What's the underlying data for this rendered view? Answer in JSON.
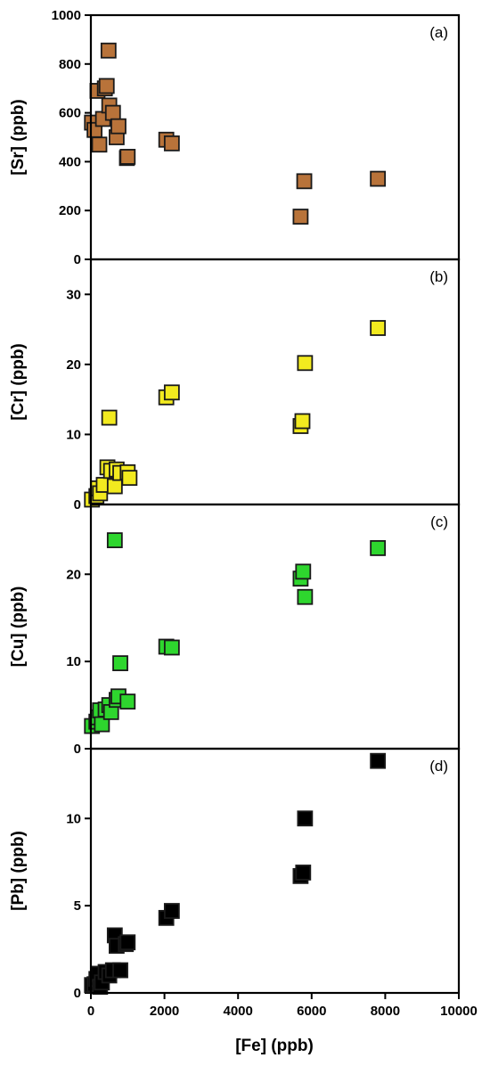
{
  "chart_data": [
    {
      "type": "scatter",
      "panel_label": "(a)",
      "ylabel": "[Sr] (ppb)",
      "ylim": [
        0,
        1000
      ],
      "yticks": [
        0,
        200,
        400,
        600,
        800,
        1000
      ],
      "ytick_labels": [
        "0",
        "200",
        "400",
        "600",
        "800",
        "1000"
      ],
      "marker_color": "#b8733a",
      "points": [
        {
          "x": 30,
          "y": 560
        },
        {
          "x": 100,
          "y": 530
        },
        {
          "x": 180,
          "y": 690
        },
        {
          "x": 230,
          "y": 470
        },
        {
          "x": 330,
          "y": 575
        },
        {
          "x": 380,
          "y": 700
        },
        {
          "x": 430,
          "y": 710
        },
        {
          "x": 480,
          "y": 855
        },
        {
          "x": 500,
          "y": 630
        },
        {
          "x": 600,
          "y": 600
        },
        {
          "x": 700,
          "y": 500
        },
        {
          "x": 750,
          "y": 545
        },
        {
          "x": 980,
          "y": 415
        },
        {
          "x": 1000,
          "y": 420
        },
        {
          "x": 2050,
          "y": 490
        },
        {
          "x": 2200,
          "y": 475
        },
        {
          "x": 5700,
          "y": 175
        },
        {
          "x": 5800,
          "y": 320
        },
        {
          "x": 7800,
          "y": 330
        }
      ]
    },
    {
      "type": "scatter",
      "panel_label": "(b)",
      "ylabel": "[Cr] (ppb)",
      "ylim": [
        0,
        35
      ],
      "yticks": [
        0,
        10,
        20,
        30
      ],
      "ytick_labels": [
        "0",
        "10",
        "20",
        "30"
      ],
      "marker_color": "#f2ea1f",
      "points": [
        {
          "x": 30,
          "y": 0.7
        },
        {
          "x": 150,
          "y": 1.2
        },
        {
          "x": 200,
          "y": 2.3
        },
        {
          "x": 250,
          "y": 1.6
        },
        {
          "x": 350,
          "y": 2.8
        },
        {
          "x": 450,
          "y": 5.3
        },
        {
          "x": 500,
          "y": 12.4
        },
        {
          "x": 550,
          "y": 4.8
        },
        {
          "x": 650,
          "y": 2.6
        },
        {
          "x": 700,
          "y": 5.0
        },
        {
          "x": 800,
          "y": 4.5
        },
        {
          "x": 1000,
          "y": 4.6
        },
        {
          "x": 1050,
          "y": 3.8
        },
        {
          "x": 2050,
          "y": 15.3
        },
        {
          "x": 2200,
          "y": 16.0
        },
        {
          "x": 5700,
          "y": 11.2
        },
        {
          "x": 5750,
          "y": 11.9
        },
        {
          "x": 5820,
          "y": 20.2
        },
        {
          "x": 7800,
          "y": 25.2
        }
      ]
    },
    {
      "type": "scatter",
      "panel_label": "(c)",
      "ylabel": "[Cu] (ppb)",
      "ylim": [
        0,
        28
      ],
      "yticks": [
        0,
        10,
        20
      ],
      "ytick_labels": [
        "0",
        "10",
        "20"
      ],
      "marker_color": "#2ed62e",
      "points": [
        {
          "x": 30,
          "y": 2.6
        },
        {
          "x": 150,
          "y": 3.1
        },
        {
          "x": 200,
          "y": 3.6
        },
        {
          "x": 250,
          "y": 4.4
        },
        {
          "x": 300,
          "y": 2.8
        },
        {
          "x": 400,
          "y": 4.5
        },
        {
          "x": 500,
          "y": 5.0
        },
        {
          "x": 550,
          "y": 4.2
        },
        {
          "x": 650,
          "y": 23.9
        },
        {
          "x": 700,
          "y": 5.6
        },
        {
          "x": 750,
          "y": 6.0
        },
        {
          "x": 800,
          "y": 9.8
        },
        {
          "x": 1000,
          "y": 5.4
        },
        {
          "x": 2050,
          "y": 11.7
        },
        {
          "x": 2200,
          "y": 11.6
        },
        {
          "x": 5700,
          "y": 19.5
        },
        {
          "x": 5770,
          "y": 20.3
        },
        {
          "x": 5820,
          "y": 17.4
        },
        {
          "x": 7800,
          "y": 23.0
        }
      ]
    },
    {
      "type": "scatter",
      "panel_label": "(d)",
      "ylabel": "[Pb] (ppb)",
      "ylim": [
        0,
        14
      ],
      "yticks": [
        0,
        5,
        10
      ],
      "ytick_labels": [
        "0",
        "5",
        "10"
      ],
      "marker_color": "#000000",
      "points": [
        {
          "x": 30,
          "y": 0.45
        },
        {
          "x": 100,
          "y": 0.5
        },
        {
          "x": 150,
          "y": 0.8
        },
        {
          "x": 200,
          "y": 1.1
        },
        {
          "x": 250,
          "y": 0.35
        },
        {
          "x": 300,
          "y": 0.6
        },
        {
          "x": 400,
          "y": 1.2
        },
        {
          "x": 500,
          "y": 1.0
        },
        {
          "x": 600,
          "y": 1.3
        },
        {
          "x": 650,
          "y": 3.3
        },
        {
          "x": 700,
          "y": 2.7
        },
        {
          "x": 800,
          "y": 1.3
        },
        {
          "x": 950,
          "y": 2.8
        },
        {
          "x": 1000,
          "y": 2.9
        },
        {
          "x": 2050,
          "y": 4.3
        },
        {
          "x": 2200,
          "y": 4.7
        },
        {
          "x": 5700,
          "y": 6.7
        },
        {
          "x": 5770,
          "y": 6.9
        },
        {
          "x": 5820,
          "y": 10.0
        },
        {
          "x": 7800,
          "y": 13.3
        }
      ]
    }
  ],
  "x_axis": {
    "xlabel": "[Fe] (ppb)",
    "xlim": [
      0,
      10000
    ],
    "xticks": [
      0,
      2000,
      4000,
      6000,
      8000,
      10000
    ],
    "xtick_labels": [
      "0",
      "2000",
      "4000",
      "6000",
      "8000",
      "10000"
    ]
  },
  "marker_edge_color": "#1a1a1a"
}
